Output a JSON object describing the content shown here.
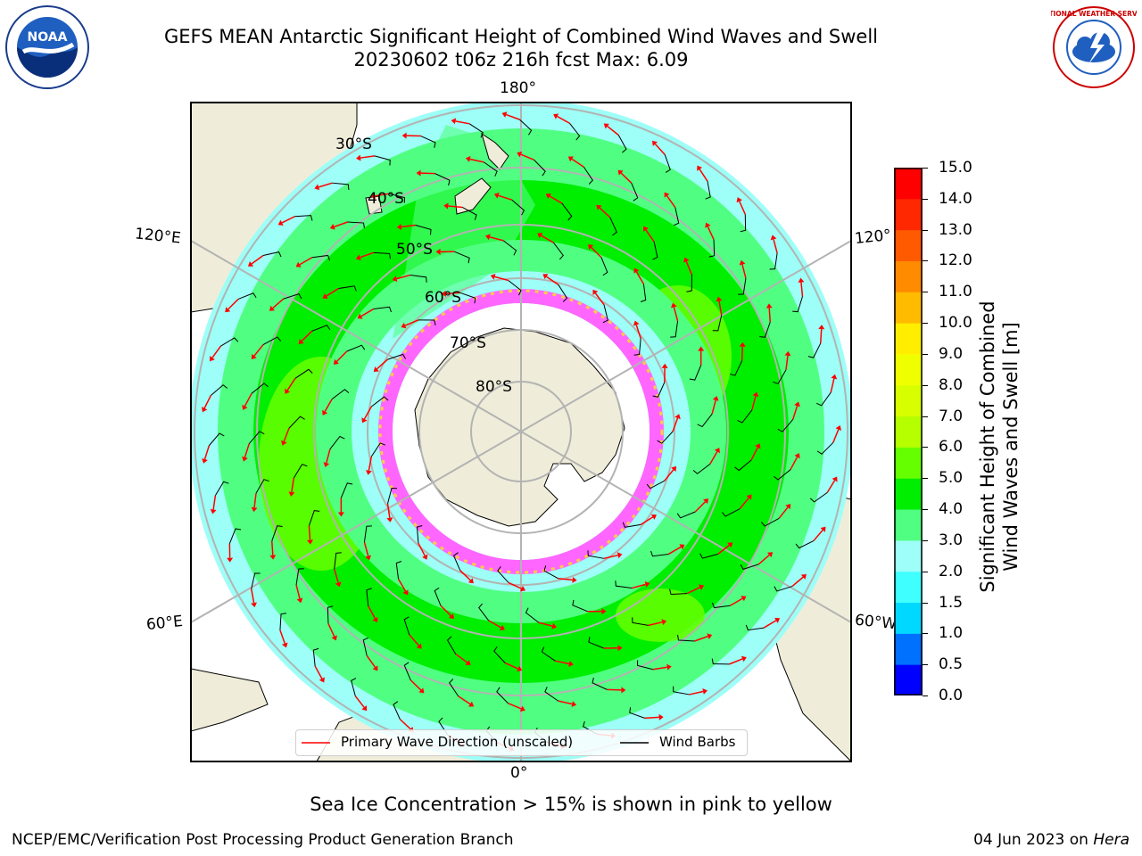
{
  "title": {
    "line1": "GEFS MEAN Antarctic Significant Height of Combined Wind Waves and Swell",
    "line2": "20230602 t06z 216h fcst   Max: 6.09"
  },
  "map": {
    "lon_labels": [
      "180°",
      "0°",
      "120°E",
      "120°",
      "60°E",
      "60°W"
    ],
    "lat_labels": [
      "30°S",
      "40°S",
      "50°S",
      "60°S",
      "70°S",
      "80°S"
    ],
    "colors": {
      "land": "#efedd9",
      "ocean_bg": "#9dfff7",
      "grid": "#b3b3b3",
      "arrow": "#ff0000",
      "barb": "#000000"
    }
  },
  "colorbar": {
    "label_line1": "Significant Height of Combined",
    "label_line2": "Wind Waves and Swell [m]",
    "ticks": [
      "0.0",
      "0.5",
      "1.0",
      "1.5",
      "2.0",
      "3.0",
      "4.0",
      "5.0",
      "6.0",
      "7.0",
      "8.0",
      "9.0",
      "10.0",
      "11.0",
      "12.0",
      "13.0",
      "14.0",
      "15.0"
    ],
    "colors": [
      "#0000ff",
      "#0070ff",
      "#00d8ff",
      "#40ffff",
      "#9dfff7",
      "#50ff82",
      "#00ee00",
      "#66ff00",
      "#b5ff00",
      "#d8ff00",
      "#f0ff00",
      "#ffee00",
      "#ffbb00",
      "#ff8c00",
      "#ff5a00",
      "#ff2800",
      "#ff0000"
    ]
  },
  "legend": {
    "item1": "Primary Wave Direction (unscaled)",
    "item2": "Wind Barbs"
  },
  "logos": {
    "left": "NOAA",
    "right": "NATIONAL WEATHER SERVICE"
  },
  "note": "Sea Ice Concentration > 15% is shown in pink to yellow",
  "footer": {
    "left": "NCEP/EMC/Verification Post Processing Product Generation Branch",
    "right_date": "04 Jun 2023 on ",
    "right_machine": "Hera"
  }
}
